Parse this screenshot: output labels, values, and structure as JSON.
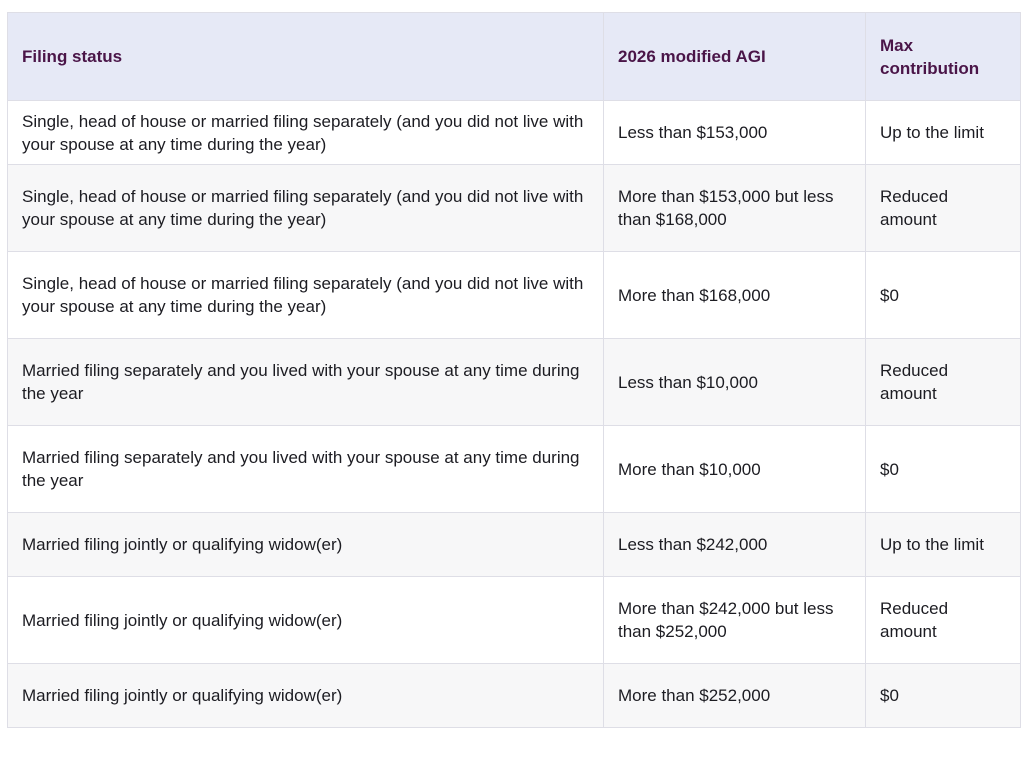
{
  "table": {
    "headers": [
      "Filing status",
      "2026 modified AGI",
      "Max contribution"
    ],
    "rows": [
      [
        "Single, head of house or married filing separately (and you did not live with your spouse at any time during the year)",
        "Less than $153,000",
        "Up to the limit"
      ],
      [
        "Single, head of house or married filing separately (and you did not live with your spouse at any time during the year)",
        "More than $153,000 but less than $168,000",
        "Reduced amount"
      ],
      [
        "Single, head of house or married filing separately (and you did not live with your spouse at any time during the year)",
        "More than $168,000",
        "$0"
      ],
      [
        "Married filing separately and you lived with your spouse at any time during the year",
        "Less than $10,000",
        "Reduced amount"
      ],
      [
        "Married filing separately and you lived with your spouse at any time during the year",
        "More than $10,000",
        "$0"
      ],
      [
        "Married filing jointly or qualifying widow(er)",
        "Less than $242,000",
        "Up to the limit"
      ],
      [
        "Married filing jointly or qualifying widow(er)",
        "More than $242,000 but less than $252,000",
        "Reduced amount"
      ],
      [
        "Married filing jointly or qualifying widow(er)",
        "More than $252,000",
        "$0"
      ]
    ]
  }
}
